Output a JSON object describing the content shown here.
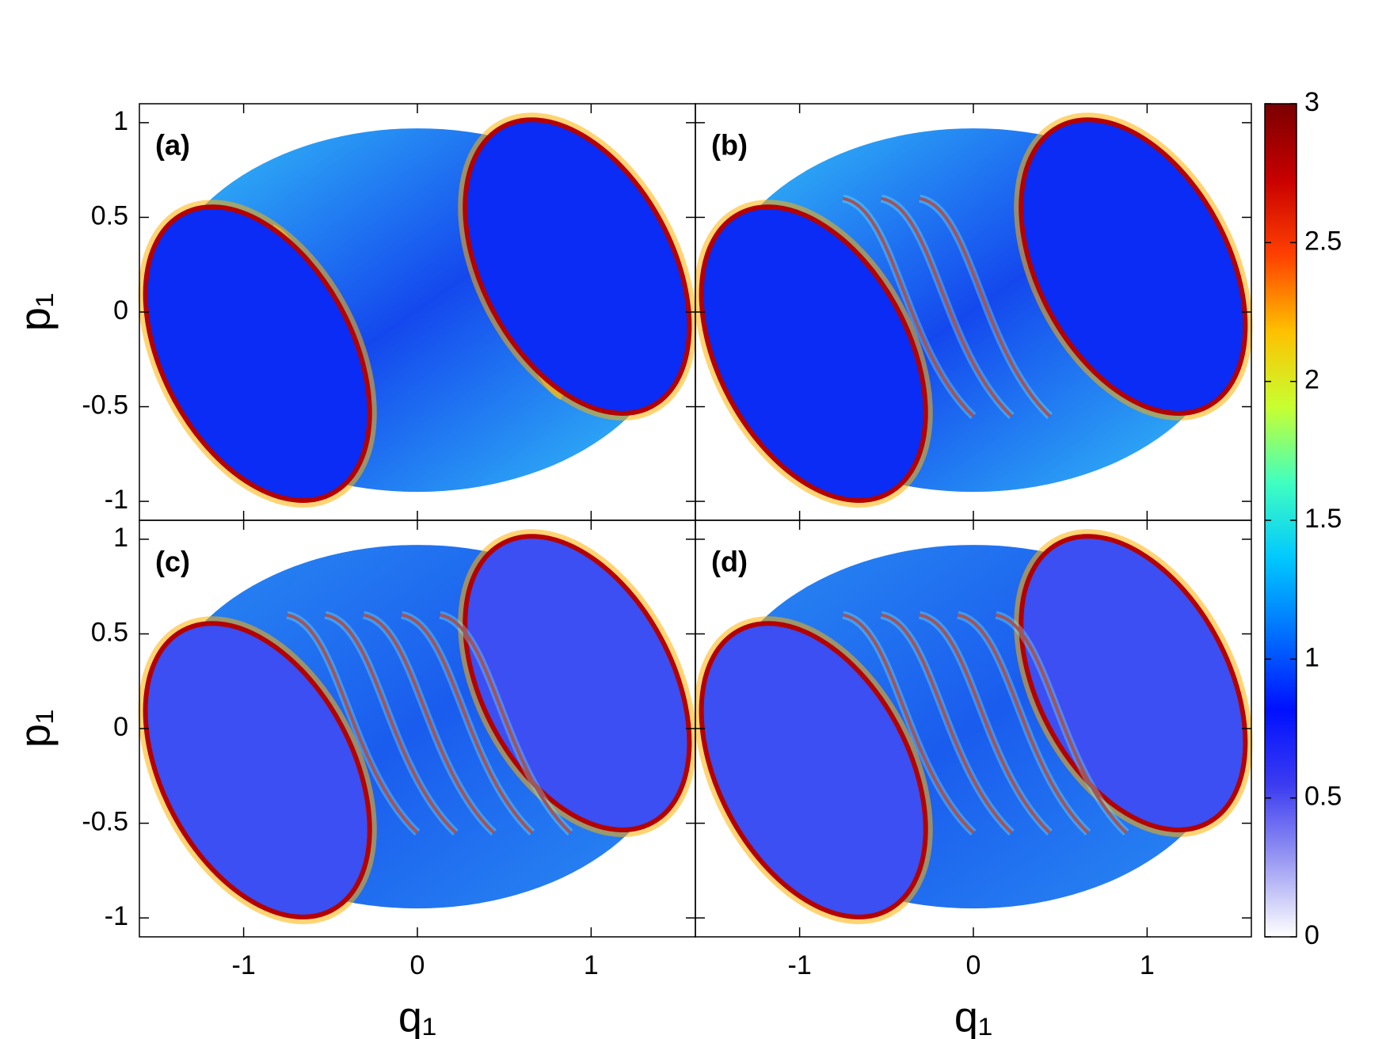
{
  "chart_data": [
    {
      "type": "heatmap",
      "panel_label": "(a)",
      "ylabel": "p₁",
      "xlim": [
        -1.6,
        1.6
      ],
      "ylim": [
        -1.1,
        1.1
      ],
      "xticks": [
        -1,
        0,
        1
      ],
      "yticks": [
        -1,
        -0.5,
        0,
        0.5,
        1
      ]
    },
    {
      "type": "heatmap",
      "panel_label": "(b)",
      "xlim": [
        -1.6,
        1.6
      ],
      "ylim": [
        -1.1,
        1.1
      ],
      "xticks": [
        -1,
        0,
        1
      ],
      "yticks": [
        -1,
        -0.5,
        0,
        0.5,
        1
      ]
    },
    {
      "type": "heatmap",
      "panel_label": "(c)",
      "xlabel": "q₁",
      "ylabel": "p₁",
      "xlim": [
        -1.6,
        1.6
      ],
      "ylim": [
        -1.1,
        1.1
      ],
      "xticks": [
        -1,
        0,
        1
      ],
      "yticks": [
        -1,
        -0.5,
        0,
        0.5,
        1
      ]
    },
    {
      "type": "heatmap",
      "panel_label": "(d)",
      "xlabel": "q₁",
      "xlim": [
        -1.6,
        1.6
      ],
      "ylim": [
        -1.1,
        1.1
      ],
      "xticks": [
        -1,
        0,
        1
      ],
      "yticks": [
        -1,
        -0.5,
        0,
        0.5,
        1
      ]
    }
  ],
  "colorbar": {
    "zlim": [
      0,
      3
    ],
    "zticks": [
      0,
      0.5,
      1,
      1.5,
      2,
      2.5,
      3
    ],
    "colormap": [
      "#ffffff",
      "#9b9bf3",
      "#3c3cf0",
      "#0010ff",
      "#0070ff",
      "#00c8ff",
      "#40ffc0",
      "#c8ff30",
      "#ffc000",
      "#ff4000",
      "#c80000",
      "#7a0000"
    ]
  }
}
